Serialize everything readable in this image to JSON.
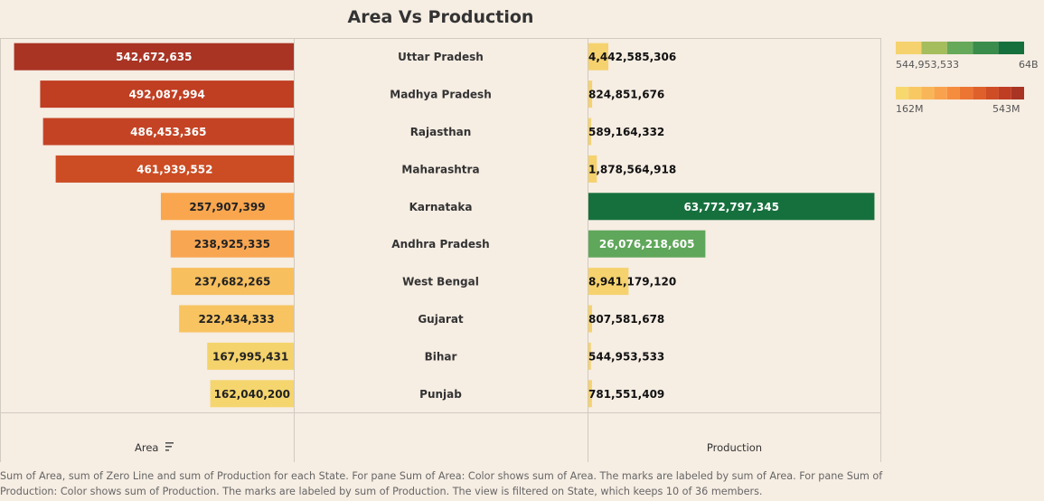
{
  "title": "Area Vs Production",
  "footer": "Sum of Area, sum of Zero Line and sum of Production for each State.  For pane Sum of Area:  Color shows sum of Area.  The marks are labeled by sum of Area.  For pane Sum of Production:  Color shows sum of Production.  The marks are labeled by sum of Production. The view is filtered on State, which keeps 10 of 36 members.",
  "legend": {
    "production": {
      "min_label": "544,953,533",
      "max_label": "64B",
      "colors": [
        "#f5d26e",
        "#a6bd5e",
        "#67a95a",
        "#3a8c4c",
        "#16703d"
      ]
    },
    "area": {
      "min_label": "162M",
      "max_label": "543M",
      "colors": [
        "#f7d86f",
        "#f8c863",
        "#f9b659",
        "#f9a24d",
        "#f58d3f",
        "#ec7533",
        "#df602b",
        "#cf4d25",
        "#bf3d23",
        "#a93424"
      ]
    }
  },
  "chart_data": {
    "type": "bar",
    "title": "Area Vs Production",
    "categories": [
      "Uttar Pradesh",
      "Madhya Pradesh",
      "Rajasthan",
      "Maharashtra",
      "Karnataka",
      "Andhra Pradesh",
      "West Bengal",
      "Gujarat",
      "Bihar",
      "Punjab"
    ],
    "series": [
      {
        "name": "Area",
        "values": [
          542672635,
          492087994,
          486453365,
          461939552,
          257907399,
          238925335,
          237682265,
          222434333,
          167995431,
          162040200
        ]
      },
      {
        "name": "Production",
        "values": [
          4442585306,
          824851676,
          589164332,
          1878564918,
          63772797345,
          26076218605,
          8941179120,
          807581678,
          544953533,
          781551409
        ]
      }
    ],
    "area_labels": [
      "542,672,635",
      "492,087,994",
      "486,453,365",
      "461,939,552",
      "257,907,399",
      "238,925,335",
      "237,682,265",
      "222,434,333",
      "167,995,431",
      "162,040,200"
    ],
    "production_labels": [
      "4,442,585,306",
      "824,851,676",
      "589,164,332",
      "1,878,564,918",
      "63,772,797,345",
      "26,076,218,605",
      "8,941,179,120",
      "807,581,678",
      "544,953,533",
      "781,551,409"
    ],
    "area_colors": [
      "#a93424",
      "#c03e22",
      "#c44324",
      "#cc4c23",
      "#f9a64e",
      "#f9a652",
      "#f7bf5e",
      "#f7c461",
      "#f5d36c",
      "#f5d56e"
    ],
    "production_colors": [
      "#f5d26e",
      "#f5d26e",
      "#f5d26e",
      "#f5d26e",
      "#16703d",
      "#5fa75a",
      "#f5d26e",
      "#f5d26e",
      "#f5d26e",
      "#f5d26e"
    ],
    "xlabel_left": "Area",
    "xlabel_right": "Production",
    "legend": "right"
  }
}
